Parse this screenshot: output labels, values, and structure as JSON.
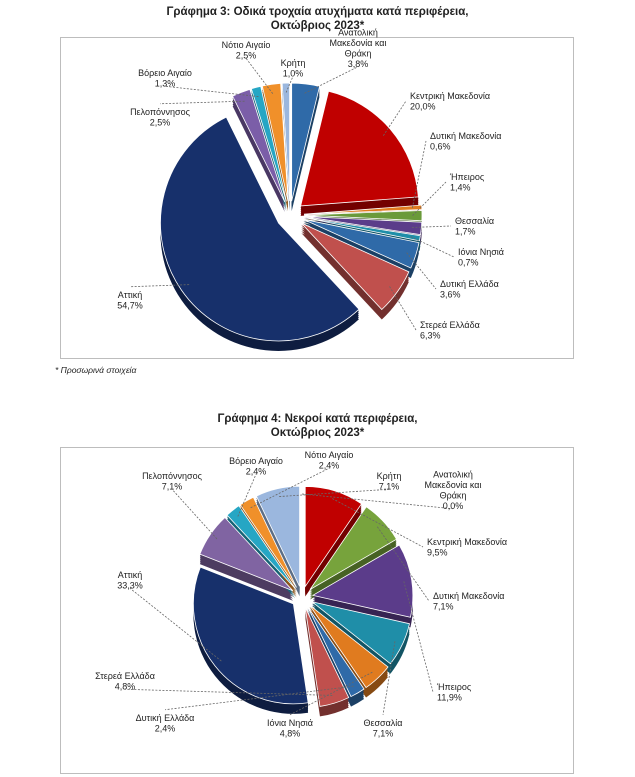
{
  "note": "* Προσωρινά στοιχεία",
  "colors": {
    "border": "#bdbdbd",
    "leader": "#666666"
  },
  "chart_data": [
    {
      "type": "pie",
      "title": "Γράφημα 3: Οδικά τροχαία ατυχήματα κατά περιφέρεια,",
      "subtitle": "Οκτώβριος 2023*",
      "unit": "%",
      "slices": [
        {
          "label": [
            "Ανατολική",
            "Μακεδονία και",
            "Θράκη"
          ],
          "value": 3.8,
          "display": "3,8%",
          "color": "#2f6aa8"
        },
        {
          "label": [
            "Κεντρική Μακεδονία"
          ],
          "value": 20.0,
          "display": "20,0%",
          "color": "#c00000"
        },
        {
          "label": [
            "Δυτική Μακεδονία"
          ],
          "value": 0.6,
          "display": "0,6%",
          "color": "#e07b1f"
        },
        {
          "label": [
            "Ήπειρος"
          ],
          "value": 1.4,
          "display": "1,4%",
          "color": "#6a9a3a"
        },
        {
          "label": [
            "Θεσσαλία"
          ],
          "value": 1.7,
          "display": "1,7%",
          "color": "#5b3c8a"
        },
        {
          "label": [
            "Ιόνια Νησιά"
          ],
          "value": 0.7,
          "display": "0,7%",
          "color": "#1f8ea8"
        },
        {
          "label": [
            "Δυτική Ελλάδα"
          ],
          "value": 3.6,
          "display": "3,6%",
          "color": "#2f6aa8"
        },
        {
          "label": [
            "Στερεά Ελλάδα"
          ],
          "value": 6.3,
          "display": "6,3%",
          "color": "#c0504d"
        },
        {
          "label": [
            "Αττική"
          ],
          "value": 54.7,
          "display": "54,7%",
          "color": "#17306b"
        },
        {
          "label": [
            "Πελοπόννησος"
          ],
          "value": 2.5,
          "display": "2,5%",
          "color": "#7b5ea8"
        },
        {
          "label": [
            "Βόρειο Αιγαίο"
          ],
          "value": 1.3,
          "display": "1,3%",
          "color": "#26a6c4"
        },
        {
          "label": [
            "Νότιο Αιγαίο"
          ],
          "value": 2.5,
          "display": "2,5%",
          "color": "#f0902a"
        },
        {
          "label": [
            "Κρήτη"
          ],
          "value": 1.0,
          "display": "1,0%",
          "color": "#9bb7de"
        }
      ]
    },
    {
      "type": "pie",
      "title": "Γράφημα 4: Νεκροί κατά περιφέρεια,",
      "subtitle": "Οκτώβριος 2023*",
      "unit": "%",
      "slices": [
        {
          "label": [
            "Ανατολική",
            "Μακεδονία και",
            "Θράκη"
          ],
          "value": 0.0,
          "display": "0,0%",
          "color": "#2f6aa8"
        },
        {
          "label": [
            "Κεντρική Μακεδονία"
          ],
          "value": 9.5,
          "display": "9,5%",
          "color": "#c00000"
        },
        {
          "label": [
            "Δυτική Μακεδονία"
          ],
          "value": 7.1,
          "display": "7,1%",
          "color": "#77a33c"
        },
        {
          "label": [
            "Ήπειρος"
          ],
          "value": 11.9,
          "display": "11,9%",
          "color": "#5b3c8a"
        },
        {
          "label": [
            "Θεσσαλία"
          ],
          "value": 7.1,
          "display": "7,1%",
          "color": "#1f8ea8"
        },
        {
          "label": [
            "Ιόνια Νησιά"
          ],
          "value": 4.8,
          "display": "4,8%",
          "color": "#e07b1f"
        },
        {
          "label": [
            "Δυτική Ελλάδα"
          ],
          "value": 2.4,
          "display": "2,4%",
          "color": "#2f6aa8"
        },
        {
          "label": [
            "Στερεά Ελλάδα"
          ],
          "value": 4.8,
          "display": "4,8%",
          "color": "#c0504d"
        },
        {
          "label": [
            "Αττική"
          ],
          "value": 33.3,
          "display": "33,3%",
          "color": "#17306b"
        },
        {
          "label": [
            "Πελοπόννησος"
          ],
          "value": 7.1,
          "display": "7,1%",
          "color": "#8064a2"
        },
        {
          "label": [
            "Βόρειο Αιγαίο"
          ],
          "value": 2.4,
          "display": "2,4%",
          "color": "#26a6c4"
        },
        {
          "label": [
            "Νότιο Αιγαίο"
          ],
          "value": 2.4,
          "display": "2,4%",
          "color": "#f0902a"
        },
        {
          "label": [
            "Κρήτη"
          ],
          "value": 7.1,
          "display": "7,1%",
          "color": "#9bb7de"
        }
      ]
    }
  ]
}
